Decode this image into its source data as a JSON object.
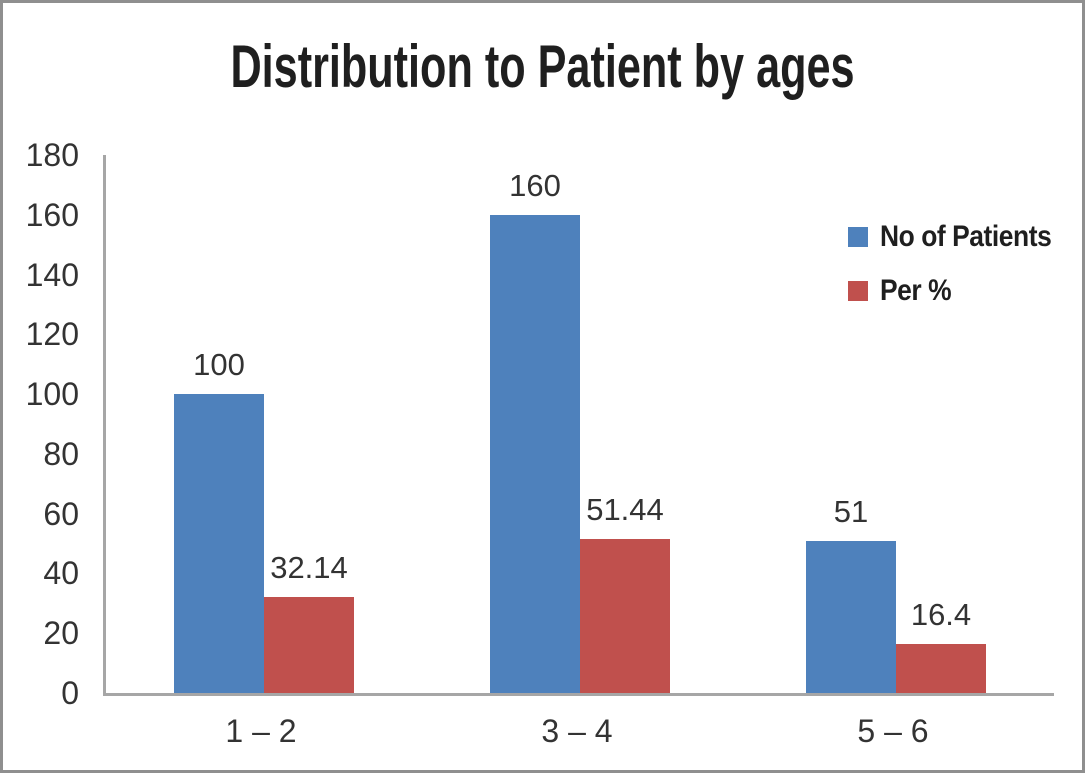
{
  "chart_data": {
    "type": "bar",
    "title": "Distribution to Patient by ages",
    "categories": [
      "1 – 2",
      "3 – 4",
      "5 – 6"
    ],
    "series": [
      {
        "name": "No of Patients",
        "color": "#4e81bc",
        "values": [
          100,
          160,
          51
        ],
        "value_labels": [
          "100",
          "160",
          "51"
        ]
      },
      {
        "name": "Per %",
        "color": "#c0504d",
        "values": [
          32.14,
          51.44,
          16.4
        ],
        "value_labels": [
          "32.14",
          "51.44",
          "16.4"
        ]
      }
    ],
    "xlabel": "",
    "ylabel": "",
    "ylim": [
      0,
      180
    ],
    "ytick_step": 20,
    "yticks": [
      0,
      20,
      40,
      60,
      80,
      100,
      120,
      140,
      160,
      180
    ],
    "grid": false,
    "legend_position": "right",
    "axis_color": "#a6a6a6",
    "text_color": "#333333",
    "title_color": "#1f1f1f",
    "frame_border_color": "#8f8f8f"
  }
}
